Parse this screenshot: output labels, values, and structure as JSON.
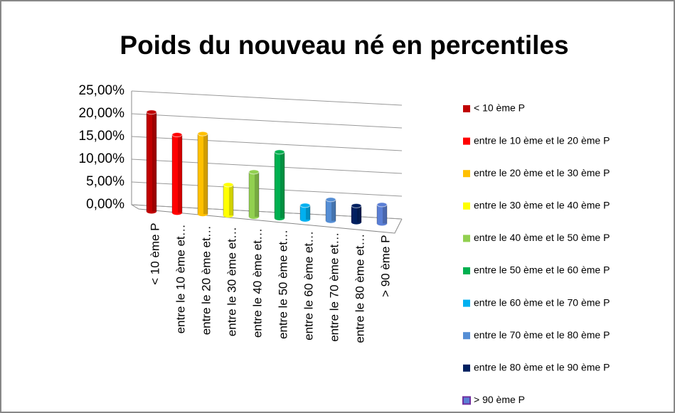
{
  "chart_data": {
    "type": "bar3d",
    "title": "Poids du nouveau né en percentiles",
    "categories": [
      "< 10 ème P",
      "entre le 10 ème et le 20 ème P",
      "entre le 20 ème et le 30 ème P",
      "entre le 30 ème et le 40 ème P",
      "entre le 40 ème et le 50 ème P",
      "entre le 50 ème et le 60 ème P",
      "entre le 60 ème et le 70 ème P",
      "entre le 70 ème et le 80 ème P",
      "entre le 80 ème et le 90 ème P",
      "> 90 ème P"
    ],
    "x_tick_labels": [
      "< 10 ème P",
      "entre le 10 ème et…",
      "entre le 20 ème et…",
      "entre le 30 ème et…",
      "entre le 40 ème et…",
      "entre le 50 ème et…",
      "entre le 60 ème et…",
      "entre le 70 ème et…",
      "entre le 80 ème et…",
      "> 90 ème P"
    ],
    "values": [
      21,
      16.5,
      17,
      6.5,
      9.5,
      14,
      3,
      4.5,
      3.5,
      4
    ],
    "colors": [
      "#c00000",
      "#ff0000",
      "#ffc000",
      "#ffff00",
      "#92d050",
      "#00b050",
      "#00b0f0",
      "#558ed5",
      "#002060",
      "#5b7fd5"
    ],
    "ylim": [
      0,
      25
    ],
    "yticks": [
      {
        "value": 0,
        "label": "0,00%"
      },
      {
        "value": 5,
        "label": "5,00%"
      },
      {
        "value": 10,
        "label": "10,00%"
      },
      {
        "value": 15,
        "label": "15,00%"
      },
      {
        "value": 20,
        "label": "20,00%"
      },
      {
        "value": 25,
        "label": "25,00%"
      }
    ],
    "grid": true,
    "legend": "right"
  }
}
